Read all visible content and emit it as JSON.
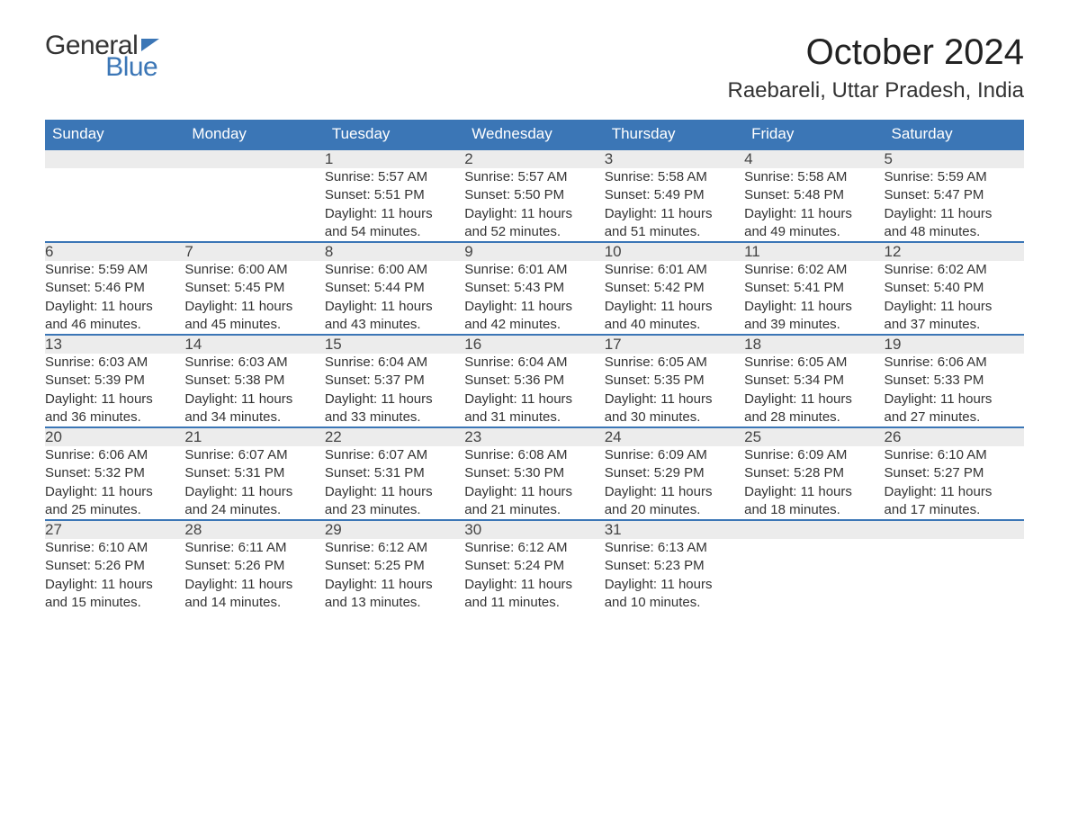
{
  "logo": {
    "word1": "General",
    "word2": "Blue"
  },
  "title": "October 2024",
  "location": "Raebareli, Uttar Pradesh, India",
  "colors": {
    "header_bg": "#3b76b6",
    "header_text": "#ffffff",
    "daynum_bg": "#ececec",
    "daynum_border": "#3b76b6",
    "body_text": "#333333",
    "page_bg": "#ffffff"
  },
  "daysOfWeek": [
    "Sunday",
    "Monday",
    "Tuesday",
    "Wednesday",
    "Thursday",
    "Friday",
    "Saturday"
  ],
  "weeks": [
    [
      null,
      null,
      {
        "n": "1",
        "sr": "5:57 AM",
        "ss": "5:51 PM",
        "dh": "11",
        "dm": "54"
      },
      {
        "n": "2",
        "sr": "5:57 AM",
        "ss": "5:50 PM",
        "dh": "11",
        "dm": "52"
      },
      {
        "n": "3",
        "sr": "5:58 AM",
        "ss": "5:49 PM",
        "dh": "11",
        "dm": "51"
      },
      {
        "n": "4",
        "sr": "5:58 AM",
        "ss": "5:48 PM",
        "dh": "11",
        "dm": "49"
      },
      {
        "n": "5",
        "sr": "5:59 AM",
        "ss": "5:47 PM",
        "dh": "11",
        "dm": "48"
      }
    ],
    [
      {
        "n": "6",
        "sr": "5:59 AM",
        "ss": "5:46 PM",
        "dh": "11",
        "dm": "46"
      },
      {
        "n": "7",
        "sr": "6:00 AM",
        "ss": "5:45 PM",
        "dh": "11",
        "dm": "45"
      },
      {
        "n": "8",
        "sr": "6:00 AM",
        "ss": "5:44 PM",
        "dh": "11",
        "dm": "43"
      },
      {
        "n": "9",
        "sr": "6:01 AM",
        "ss": "5:43 PM",
        "dh": "11",
        "dm": "42"
      },
      {
        "n": "10",
        "sr": "6:01 AM",
        "ss": "5:42 PM",
        "dh": "11",
        "dm": "40"
      },
      {
        "n": "11",
        "sr": "6:02 AM",
        "ss": "5:41 PM",
        "dh": "11",
        "dm": "39"
      },
      {
        "n": "12",
        "sr": "6:02 AM",
        "ss": "5:40 PM",
        "dh": "11",
        "dm": "37"
      }
    ],
    [
      {
        "n": "13",
        "sr": "6:03 AM",
        "ss": "5:39 PM",
        "dh": "11",
        "dm": "36"
      },
      {
        "n": "14",
        "sr": "6:03 AM",
        "ss": "5:38 PM",
        "dh": "11",
        "dm": "34"
      },
      {
        "n": "15",
        "sr": "6:04 AM",
        "ss": "5:37 PM",
        "dh": "11",
        "dm": "33"
      },
      {
        "n": "16",
        "sr": "6:04 AM",
        "ss": "5:36 PM",
        "dh": "11",
        "dm": "31"
      },
      {
        "n": "17",
        "sr": "6:05 AM",
        "ss": "5:35 PM",
        "dh": "11",
        "dm": "30"
      },
      {
        "n": "18",
        "sr": "6:05 AM",
        "ss": "5:34 PM",
        "dh": "11",
        "dm": "28"
      },
      {
        "n": "19",
        "sr": "6:06 AM",
        "ss": "5:33 PM",
        "dh": "11",
        "dm": "27"
      }
    ],
    [
      {
        "n": "20",
        "sr": "6:06 AM",
        "ss": "5:32 PM",
        "dh": "11",
        "dm": "25"
      },
      {
        "n": "21",
        "sr": "6:07 AM",
        "ss": "5:31 PM",
        "dh": "11",
        "dm": "24"
      },
      {
        "n": "22",
        "sr": "6:07 AM",
        "ss": "5:31 PM",
        "dh": "11",
        "dm": "23"
      },
      {
        "n": "23",
        "sr": "6:08 AM",
        "ss": "5:30 PM",
        "dh": "11",
        "dm": "21"
      },
      {
        "n": "24",
        "sr": "6:09 AM",
        "ss": "5:29 PM",
        "dh": "11",
        "dm": "20"
      },
      {
        "n": "25",
        "sr": "6:09 AM",
        "ss": "5:28 PM",
        "dh": "11",
        "dm": "18"
      },
      {
        "n": "26",
        "sr": "6:10 AM",
        "ss": "5:27 PM",
        "dh": "11",
        "dm": "17"
      }
    ],
    [
      {
        "n": "27",
        "sr": "6:10 AM",
        "ss": "5:26 PM",
        "dh": "11",
        "dm": "15"
      },
      {
        "n": "28",
        "sr": "6:11 AM",
        "ss": "5:26 PM",
        "dh": "11",
        "dm": "14"
      },
      {
        "n": "29",
        "sr": "6:12 AM",
        "ss": "5:25 PM",
        "dh": "11",
        "dm": "13"
      },
      {
        "n": "30",
        "sr": "6:12 AM",
        "ss": "5:24 PM",
        "dh": "11",
        "dm": "11"
      },
      {
        "n": "31",
        "sr": "6:13 AM",
        "ss": "5:23 PM",
        "dh": "11",
        "dm": "10"
      },
      null,
      null
    ]
  ],
  "labels": {
    "sunrise": "Sunrise: ",
    "sunset": "Sunset: ",
    "daylight_prefix": "Daylight: ",
    "hours_word": " hours",
    "and_word": "and ",
    "minutes_word": " minutes."
  }
}
